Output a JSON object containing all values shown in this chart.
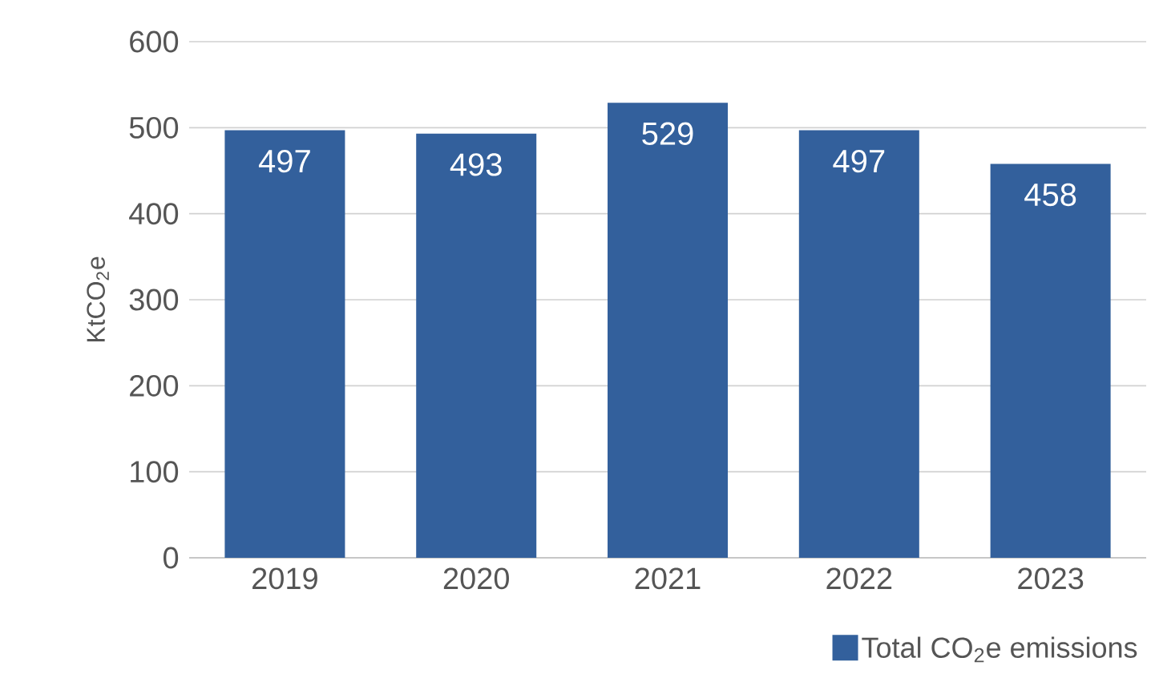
{
  "chart_data": {
    "type": "bar",
    "ylabel": "KtCO$_{2}$e",
    "categories": [
      "2019",
      "2020",
      "2021",
      "2022",
      "2023"
    ],
    "series": [
      {
        "name": "Total CO$_{2}$e emissions",
        "color": "#33609c",
        "values": [
          497,
          493,
          529,
          497,
          458
        ]
      }
    ],
    "ylim": [
      0,
      600
    ],
    "yticks": [
      0,
      100,
      200,
      300,
      400,
      500,
      600
    ],
    "grid": "y",
    "legend": "bottom right",
    "data_labels": true
  }
}
